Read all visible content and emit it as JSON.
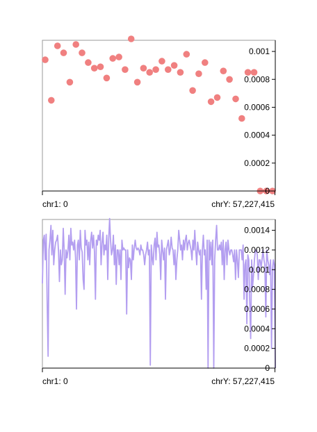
{
  "chart_data": [
    {
      "type": "scatter",
      "color": "#f08080",
      "x_start_label": "chr1: 0",
      "x_end_label": "chrY: 57,227,415",
      "ylim": [
        0,
        0.00108
      ],
      "y_ticks": [
        "0",
        "0.0002",
        "0.0004",
        "0.0006",
        "0.0008",
        "0.001"
      ],
      "y_tick_values": [
        0,
        0.0002,
        0.0004,
        0.0006,
        0.0008,
        0.001
      ],
      "y_axis_position": "right",
      "grid": false,
      "values": [
        0.00094,
        0.00065,
        0.00104,
        0.00099,
        0.00078,
        0.00105,
        0.00099,
        0.00092,
        0.00088,
        0.00089,
        0.00081,
        0.00095,
        0.00096,
        0.00087,
        0.00109,
        0.00078,
        0.00088,
        0.00085,
        0.00087,
        0.00093,
        0.00087,
        0.0009,
        0.00085,
        0.00098,
        0.00072,
        0.00084,
        0.00092,
        0.00064,
        0.00067,
        0.00086,
        0.0008,
        0.00066,
        0.00052,
        0.00085,
        0.00085,
        0.0,
        0.0,
        0.0
      ]
    },
    {
      "type": "line",
      "color": "#b39ef0",
      "x_start_label": "chr1: 0",
      "x_end_label": "chrY: 57,227,415",
      "ylim": [
        0,
        0.00151
      ],
      "y_ticks": [
        "0",
        "0.0002",
        "0.0004",
        "0.0006",
        "0.0008",
        "0.001",
        "0.0012",
        "0.0014"
      ],
      "y_tick_values": [
        0,
        0.0002,
        0.0004,
        0.0006,
        0.0008,
        0.001,
        0.0012,
        0.0014
      ],
      "y_axis_position": "right",
      "grid": false,
      "values": [
        0.00086,
        0.0013,
        0.00135,
        0.0011,
        0.00136,
        0.0007,
        0.00012,
        0.0012,
        0.0013,
        0.00145,
        0.00115,
        0.0014,
        0.00105,
        0.0012,
        0.00128,
        0.0013,
        0.00135,
        0.00118,
        0.00088,
        0.0012,
        0.00105,
        0.0011,
        0.00142,
        0.0012,
        0.00075,
        0.0012,
        0.00112,
        0.0012,
        0.00135,
        0.0011,
        0.00142,
        0.00125,
        0.00128,
        0.0012,
        0.0013,
        0.00112,
        0.0006,
        0.00125,
        0.0013,
        0.0011,
        0.0014,
        0.00122,
        0.00118,
        0.0009,
        0.0008,
        0.0014,
        0.00125,
        0.0013,
        0.0011,
        0.00128,
        0.00105,
        0.0013,
        0.00138,
        0.00122,
        0.00135,
        0.00118,
        0.0007,
        0.0013,
        0.00125,
        0.00135,
        0.0013,
        0.0014,
        0.00105,
        0.00127,
        0.00138,
        0.00115,
        0.00125,
        0.0012,
        0.00135,
        0.0009,
        0.0013,
        0.00152,
        0.0013,
        0.00115,
        0.0012,
        0.00135,
        0.00105,
        0.00125,
        0.00085,
        0.0012,
        0.0012,
        0.00105,
        0.0012,
        0.0009,
        0.0013,
        0.0012,
        0.00122,
        0.0012,
        0.0012,
        0.00055,
        0.0012,
        0.00102,
        0.00112,
        0.0011,
        0.0009,
        0.00125,
        0.0011,
        0.00122,
        0.0013,
        0.00122,
        0.0012,
        0.00122,
        0.0012,
        0.00115,
        0.00125,
        0.0012,
        0.0012,
        0.00115,
        0.00105,
        0.00115,
        0.0012,
        0.00128,
        0.00115,
        0.0012,
        3e-05,
        0.00125,
        0.00112,
        0.00105,
        0.00125,
        0.00132,
        0.0011,
        0.00138,
        0.00123,
        0.00125,
        0.00115,
        0.0009,
        0.0013,
        0.0012,
        0.0011,
        0.00122,
        0.0007,
        0.0012,
        0.00125,
        0.0013,
        0.00115,
        0.0012,
        0.00133,
        0.00122,
        0.0012,
        0.00105,
        0.0012,
        0.0009,
        0.0011,
        0.0012,
        0.0014,
        0.0013,
        0.0012,
        0.00125,
        0.0011,
        0.0013,
        0.0012,
        0.0013,
        0.00135,
        0.0012,
        0.00127,
        0.0013,
        0.00125,
        0.0012,
        0.0011,
        0.0013,
        0.0012,
        0.0014,
        0.0012,
        0.00105,
        0.00128,
        0.0012,
        0.00115,
        0.0012,
        0.0007,
        0.0012,
        0.00135,
        0.00115,
        0.0012,
        0.0008,
        0.0013,
        0.0,
        0.0013,
        0.0011,
        0.00128,
        0.00105,
        0.0013,
        0.0,
        0.0011,
        0.0013,
        0.00145,
        0.0012,
        0.0012,
        0.00125,
        0.0012,
        0.00128,
        0.00105,
        0.0013,
        0.0009,
        0.0012,
        0.00128,
        0.00105,
        0.0013,
        0.0012,
        0.00115,
        0.0012,
        0.0012,
        0.00115,
        0.00108,
        0.0012,
        0.0009,
        0.0012,
        0.0011,
        0.00092,
        0.0012,
        0.0012,
        0.0012,
        0.0011,
        0.00125,
        0.0007,
        0.00105,
        0.0011,
        0.00045,
        0.00115,
        0.0011,
        0.00068,
        0.0003,
        0.0011,
        0.00082,
        0.00095,
        0.0011,
        0.0012,
        0.0012,
        0.00115,
        0.0009,
        0.0011,
        0.0011,
        0.00102,
        0.0011,
        0.0012,
        0.0011,
        0.00105,
        0.00052,
        0.0012,
        0.0011,
        0.00105,
        0.00095,
        0.0011,
        0.0002,
        0.001,
        0.0011,
        0.00105,
        0.0
      ]
    }
  ]
}
